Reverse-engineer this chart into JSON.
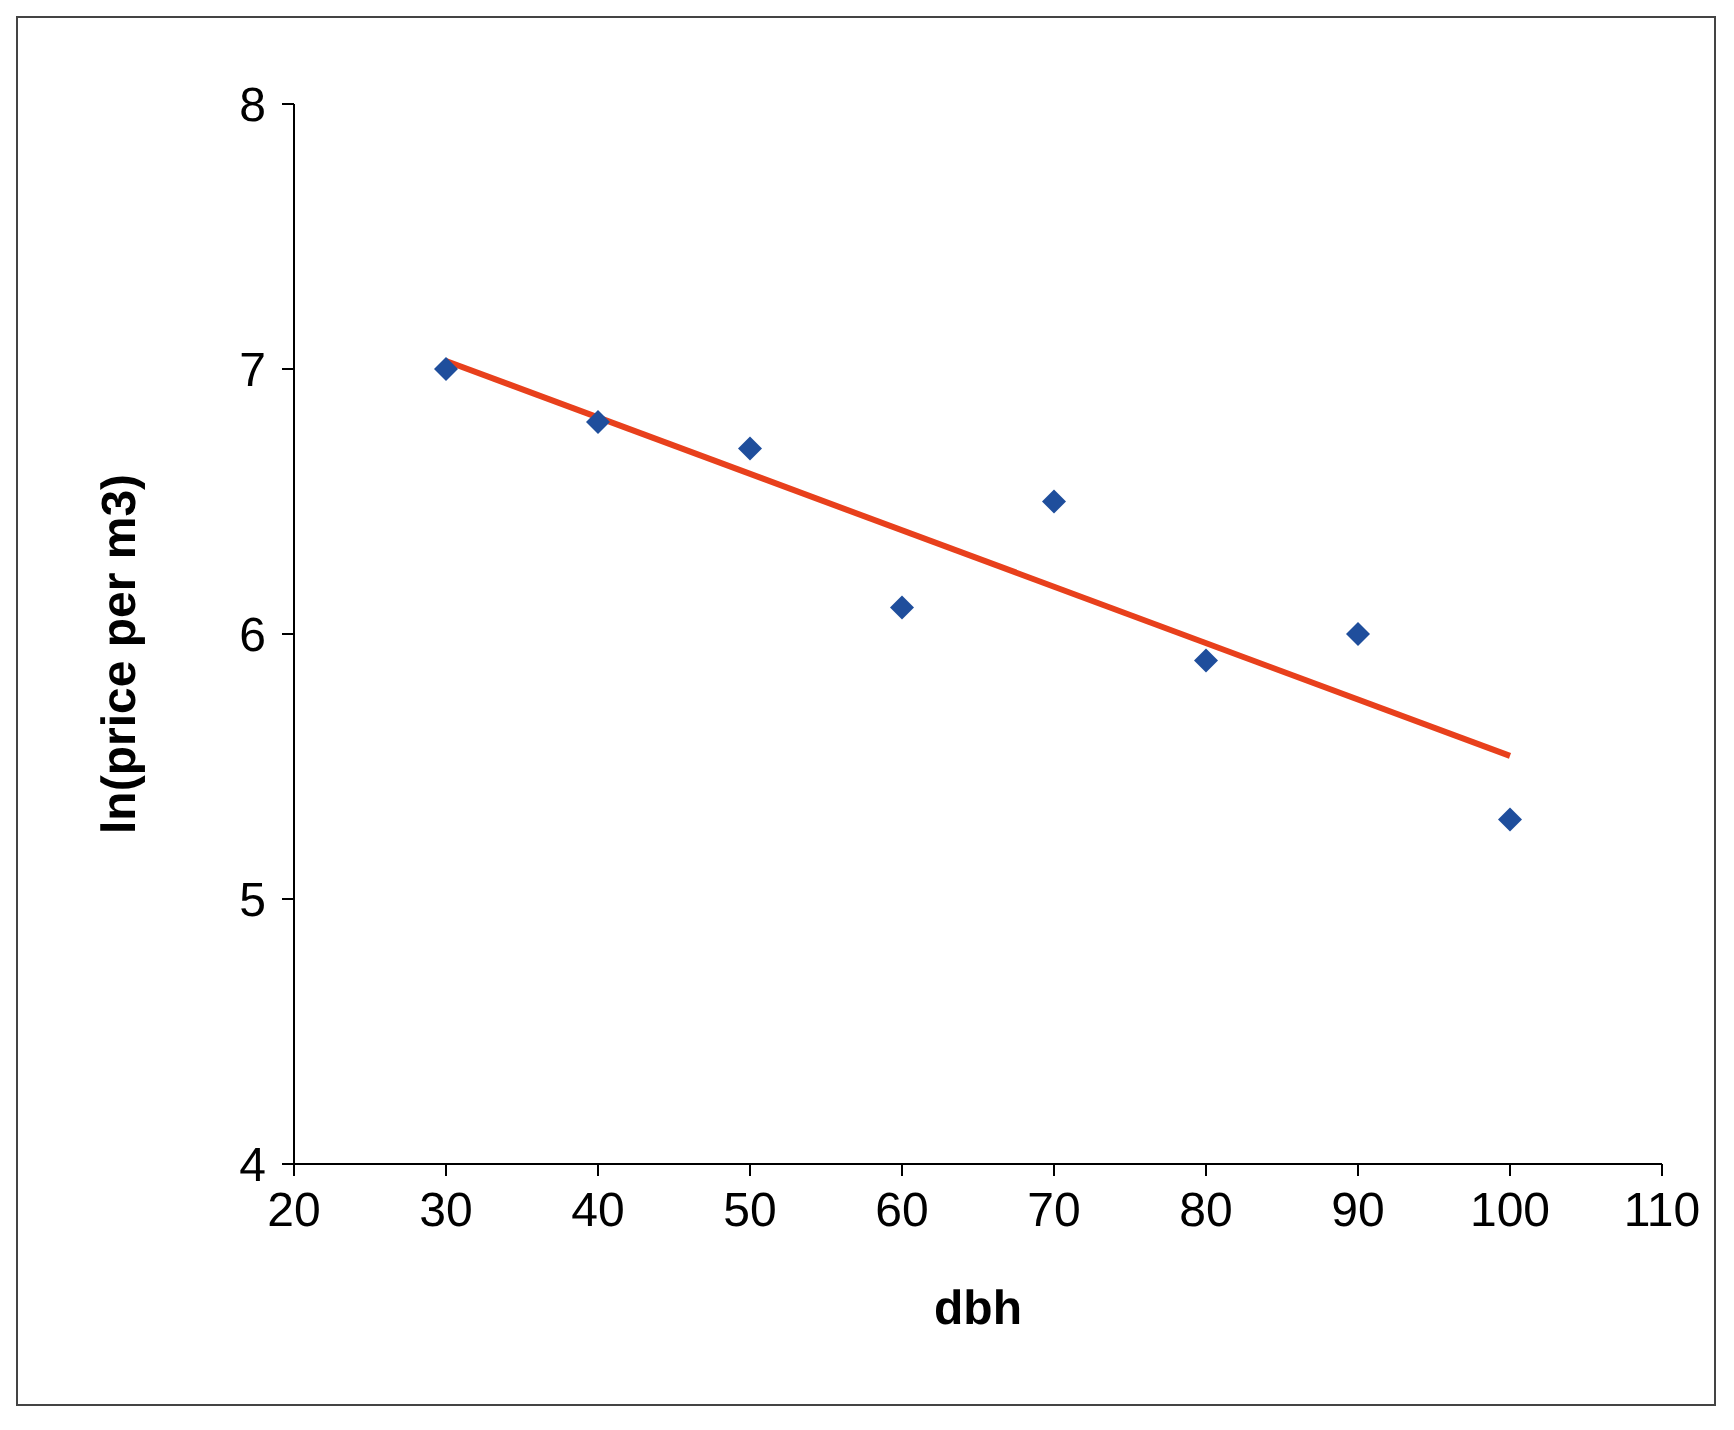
{
  "chart_data": {
    "type": "scatter",
    "xlabel": "dbh",
    "ylabel": "ln(price per m3)",
    "x": [
      30,
      40,
      50,
      60,
      70,
      80,
      90,
      100
    ],
    "series": [
      {
        "color": "#1f4e9c",
        "marker": "diamond",
        "values": [
          7.0,
          6.8,
          6.7,
          6.1,
          6.5,
          5.9,
          6.0,
          5.3
        ]
      },
      {
        "type": "line",
        "color": "#e8401c",
        "x": [
          30,
          100
        ],
        "values": [
          7.03,
          5.54
        ]
      }
    ],
    "xlim": [
      20,
      110
    ],
    "xticks": [
      20,
      30,
      40,
      50,
      60,
      70,
      80,
      90,
      100,
      110
    ],
    "ylim": [
      4,
      8
    ],
    "yticks": [
      4,
      5,
      6,
      7,
      8
    ],
    "grid": false,
    "legend": false,
    "line_style": "solid"
  }
}
